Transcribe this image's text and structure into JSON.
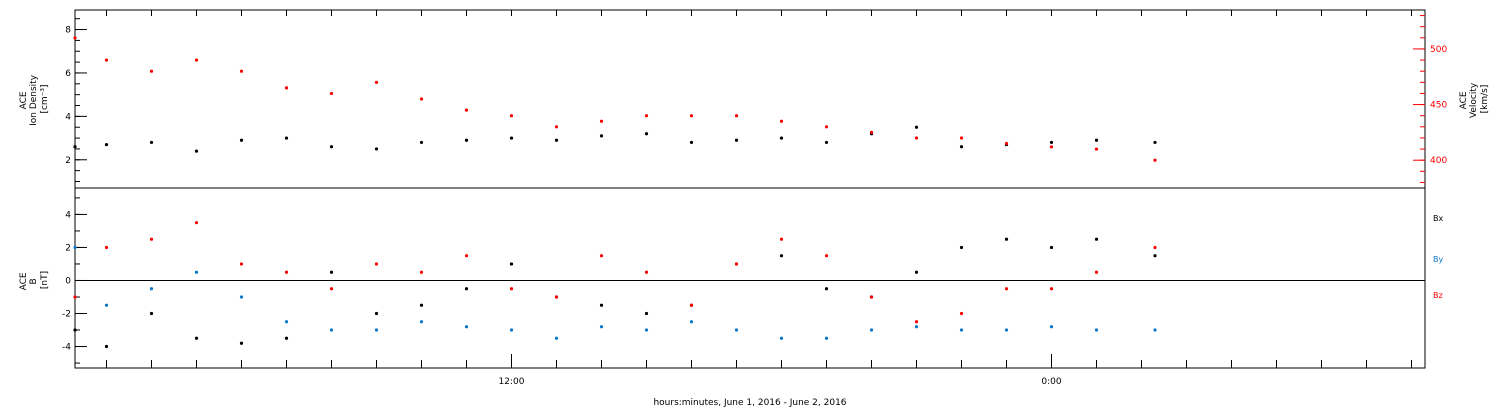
{
  "xlabel": "hours:minutes, June  1, 2016 - June  2, 2016",
  "colors": {
    "black": "#000000",
    "red": "#ff0000",
    "blue": "#0a78c8"
  },
  "chart_data": [
    {
      "type": "scatter",
      "ylabel": "ACE\nIon Density\n[cm⁻³]",
      "y2label": "ACE\nVelocity\n[km/s]",
      "ylim": [
        0.7,
        8.9
      ],
      "y2lim": [
        375,
        535
      ],
      "yticks": [
        "2",
        "4",
        "6",
        "8"
      ],
      "y2ticks": [
        "400",
        "450",
        "500"
      ],
      "xlim_hours": [
        2.3,
        32.3
      ],
      "series": [
        {
          "name": "Density",
          "axis": "left",
          "color": "#000000",
          "points": [
            [
              2.3,
              2.6
            ],
            [
              3.0,
              2.7
            ],
            [
              4.0,
              2.8
            ],
            [
              5.0,
              2.4
            ],
            [
              6.0,
              2.9
            ],
            [
              7.0,
              3.0
            ],
            [
              8.0,
              2.6
            ],
            [
              9.0,
              2.5
            ],
            [
              10.0,
              2.8
            ],
            [
              11.0,
              2.9
            ],
            [
              12.0,
              3.0
            ],
            [
              13.0,
              2.9
            ],
            [
              14.0,
              3.1
            ],
            [
              15.0,
              3.2
            ],
            [
              16.0,
              2.8
            ],
            [
              17.0,
              2.9
            ],
            [
              18.0,
              3.0
            ],
            [
              19.0,
              2.8
            ],
            [
              20.0,
              3.2
            ],
            [
              21.0,
              3.5
            ],
            [
              22.0,
              2.6
            ],
            [
              23.0,
              2.7
            ],
            [
              24.0,
              2.8
            ],
            [
              25.0,
              2.9
            ],
            [
              26.3,
              2.8
            ]
          ]
        },
        {
          "name": "Velocity",
          "axis": "right",
          "color": "#ff0000",
          "points": [
            [
              2.3,
              510
            ],
            [
              3.0,
              490
            ],
            [
              4.0,
              480
            ],
            [
              5.0,
              490
            ],
            [
              6.0,
              480
            ],
            [
              7.0,
              465
            ],
            [
              8.0,
              460
            ],
            [
              9.0,
              470
            ],
            [
              10.0,
              455
            ],
            [
              11.0,
              445
            ],
            [
              12.0,
              440
            ],
            [
              13.0,
              430
            ],
            [
              14.0,
              435
            ],
            [
              15.0,
              440
            ],
            [
              16.0,
              440
            ],
            [
              17.0,
              440
            ],
            [
              18.0,
              435
            ],
            [
              19.0,
              430
            ],
            [
              20.0,
              425
            ],
            [
              21.0,
              420
            ],
            [
              22.0,
              420
            ],
            [
              23.0,
              415
            ],
            [
              24.0,
              412
            ],
            [
              25.0,
              410
            ],
            [
              26.3,
              400
            ]
          ]
        }
      ]
    },
    {
      "type": "scatter",
      "ylabel": "ACE\nB\n[nT]",
      "ylim": [
        -5.3,
        5.6
      ],
      "yticks": [
        "-4",
        "-2",
        "0",
        "2",
        "4"
      ],
      "xticks": [
        "12:00",
        "0:00"
      ],
      "xtick_hours": [
        12,
        24
      ],
      "zero_line": true,
      "xlim_hours": [
        2.3,
        32.3
      ],
      "legend": [
        "Bx",
        "By",
        "Bz"
      ],
      "series": [
        {
          "name": "Bx",
          "color": "#000000",
          "points": [
            [
              2.3,
              -3.0
            ],
            [
              3.0,
              -4.0
            ],
            [
              4.0,
              -2.0
            ],
            [
              5.0,
              -3.5
            ],
            [
              6.0,
              -3.8
            ],
            [
              7.0,
              -3.5
            ],
            [
              8.0,
              0.5
            ],
            [
              9.0,
              -2.0
            ],
            [
              10.0,
              -1.5
            ],
            [
              11.0,
              -0.5
            ],
            [
              12.0,
              1.0
            ],
            [
              13.0,
              -1.0
            ],
            [
              14.0,
              -1.5
            ],
            [
              15.0,
              -2.0
            ],
            [
              16.0,
              -1.5
            ],
            [
              17.0,
              1.0
            ],
            [
              18.0,
              1.5
            ],
            [
              19.0,
              -0.5
            ],
            [
              20.0,
              -1.0
            ],
            [
              21.0,
              0.5
            ],
            [
              22.0,
              2.0
            ],
            [
              23.0,
              2.5
            ],
            [
              24.0,
              2.0
            ],
            [
              25.0,
              2.5
            ],
            [
              26.3,
              1.5
            ]
          ]
        },
        {
          "name": "By",
          "color": "#0a78c8",
          "points": [
            [
              2.3,
              2.0
            ],
            [
              3.0,
              -1.5
            ],
            [
              4.0,
              -0.5
            ],
            [
              5.0,
              0.5
            ],
            [
              6.0,
              -1.0
            ],
            [
              7.0,
              -2.5
            ],
            [
              8.0,
              -3.0
            ],
            [
              9.0,
              -3.0
            ],
            [
              10.0,
              -2.5
            ],
            [
              11.0,
              -2.8
            ],
            [
              12.0,
              -3.0
            ],
            [
              13.0,
              -3.5
            ],
            [
              14.0,
              -2.8
            ],
            [
              15.0,
              -3.0
            ],
            [
              16.0,
              -2.5
            ],
            [
              17.0,
              -3.0
            ],
            [
              18.0,
              -3.5
            ],
            [
              19.0,
              -3.5
            ],
            [
              20.0,
              -3.0
            ],
            [
              21.0,
              -2.8
            ],
            [
              22.0,
              -3.0
            ],
            [
              23.0,
              -3.0
            ],
            [
              24.0,
              -2.8
            ],
            [
              25.0,
              -3.0
            ],
            [
              26.3,
              -3.0
            ]
          ]
        },
        {
          "name": "Bz",
          "color": "#ff0000",
          "points": [
            [
              2.3,
              -1.0
            ],
            [
              3.0,
              2.0
            ],
            [
              4.0,
              2.5
            ],
            [
              5.0,
              3.5
            ],
            [
              6.0,
              1.0
            ],
            [
              7.0,
              0.5
            ],
            [
              8.0,
              -0.5
            ],
            [
              9.0,
              1.0
            ],
            [
              10.0,
              0.5
            ],
            [
              11.0,
              1.5
            ],
            [
              12.0,
              -0.5
            ],
            [
              13.0,
              -1.0
            ],
            [
              14.0,
              1.5
            ],
            [
              15.0,
              0.5
            ],
            [
              16.0,
              -1.5
            ],
            [
              17.0,
              1.0
            ],
            [
              18.0,
              2.5
            ],
            [
              19.0,
              1.5
            ],
            [
              20.0,
              -1.0
            ],
            [
              21.0,
              -2.5
            ],
            [
              22.0,
              -2.0
            ],
            [
              23.0,
              -0.5
            ],
            [
              24.0,
              -0.5
            ],
            [
              25.0,
              0.5
            ],
            [
              26.3,
              2.0
            ]
          ]
        }
      ]
    }
  ]
}
